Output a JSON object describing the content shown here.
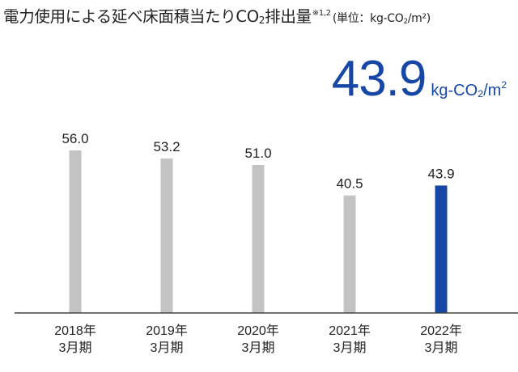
{
  "title": {
    "main": "電力使用による延べ床面積当たりCO",
    "sub": "2",
    "suffix": "排出量",
    "note": "※1,2",
    "unit_prefix": "(単位：kg-CO",
    "unit_sub": "2",
    "unit_suffix": "/m²)"
  },
  "highlight": {
    "value": "43.9",
    "unit_prefix": "kg-CO",
    "unit_sub": "2",
    "unit_mid": "/m",
    "unit_sup": "2"
  },
  "colors": {
    "bar": "#c3c3c6",
    "highlight_bar": "#1747a6",
    "baseline": "#444444",
    "highlight_text": "#1747a6"
  },
  "chart_data": {
    "type": "bar",
    "categories": [
      [
        "2018年",
        "3月期"
      ],
      [
        "2019年",
        "3月期"
      ],
      [
        "2020年",
        "3月期"
      ],
      [
        "2021年",
        "3月期"
      ],
      [
        "2022年",
        "3月期"
      ]
    ],
    "values": [
      56.0,
      53.2,
      51.0,
      40.5,
      43.9
    ],
    "value_labels": [
      "56.0",
      "53.2",
      "51.0",
      "40.5",
      "43.9"
    ],
    "highlight_index": 4,
    "ylim": [
      0,
      56
    ],
    "xlabel": "",
    "ylabel": "",
    "grid": false,
    "legend": "none"
  }
}
